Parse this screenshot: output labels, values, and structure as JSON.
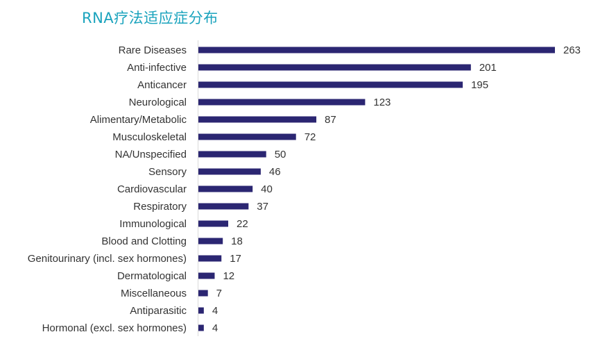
{
  "chart_data": {
    "type": "bar",
    "orientation": "horizontal",
    "title": "RNA疗法适应症分布",
    "categories": [
      "Rare Diseases",
      "Anti-infective",
      "Anticancer",
      "Neurological",
      "Alimentary/Metabolic",
      "Musculoskeletal",
      "NA/Unspecified",
      "Sensory",
      "Cardiovascular",
      "Respiratory",
      "Immunological",
      "Blood and Clotting",
      "Genitourinary (incl. sex hormones)",
      "Dermatological",
      "Miscellaneous",
      "Antiparasitic",
      "Hormonal (excl. sex hormones)"
    ],
    "values": [
      263,
      201,
      195,
      123,
      87,
      72,
      50,
      46,
      40,
      37,
      22,
      18,
      17,
      12,
      7,
      4,
      4
    ],
    "xlabel": "",
    "ylabel": "",
    "xlim": [
      0,
      263
    ],
    "grid": false,
    "legend": "none",
    "bar_color": "#2b2672"
  }
}
